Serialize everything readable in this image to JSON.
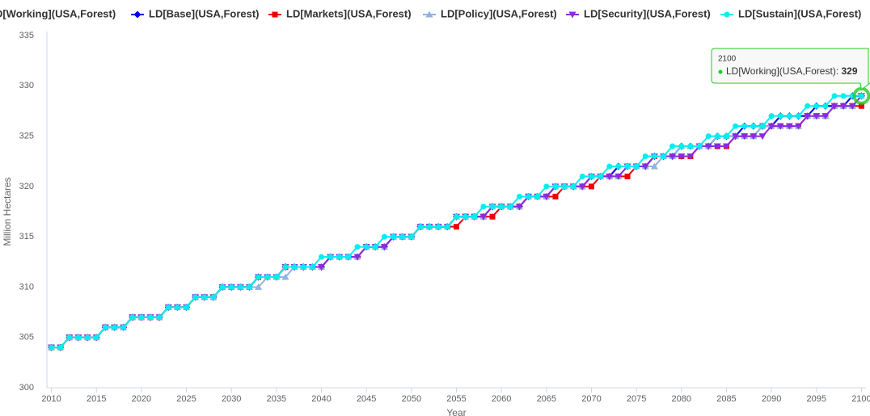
{
  "chart_data": {
    "type": "line",
    "y_label": "Million Hectares",
    "x_label": "Year",
    "x": [
      2010,
      2011,
      2012,
      2013,
      2014,
      2015,
      2016,
      2017,
      2018,
      2019,
      2020,
      2021,
      2022,
      2023,
      2024,
      2025,
      2026,
      2027,
      2028,
      2029,
      2030,
      2031,
      2032,
      2033,
      2034,
      2035,
      2036,
      2037,
      2038,
      2039,
      2040,
      2041,
      2042,
      2043,
      2044,
      2045,
      2046,
      2047,
      2048,
      2049,
      2050,
      2051,
      2052,
      2053,
      2054,
      2055,
      2056,
      2057,
      2058,
      2059,
      2060,
      2061,
      2062,
      2063,
      2064,
      2065,
      2066,
      2067,
      2068,
      2069,
      2070,
      2071,
      2072,
      2073,
      2074,
      2075,
      2076,
      2077,
      2078,
      2079,
      2080,
      2081,
      2082,
      2083,
      2084,
      2085,
      2086,
      2087,
      2088,
      2089,
      2090,
      2091,
      2092,
      2093,
      2094,
      2095,
      2096,
      2097,
      2098,
      2099,
      2100
    ],
    "xlim": [
      2009.5,
      2100.5
    ],
    "xticks": [
      2010,
      2015,
      2020,
      2025,
      2030,
      2035,
      2040,
      2045,
      2050,
      2055,
      2060,
      2065,
      2070,
      2075,
      2080,
      2085,
      2090,
      2095,
      2100
    ],
    "ylim": [
      300,
      335
    ],
    "yticks": [
      300,
      305,
      310,
      315,
      320,
      325,
      330,
      335
    ],
    "grid": false,
    "series": [
      {
        "name": "LD[Working](USA,Forest)",
        "color": "#22cc22",
        "marker": "circle",
        "values": [
          304,
          304,
          305,
          305,
          305,
          305,
          306,
          306,
          306,
          307,
          307,
          307,
          307,
          308,
          308,
          308,
          309,
          309,
          309,
          310,
          310,
          310,
          310,
          311,
          311,
          311,
          312,
          312,
          312,
          312,
          312,
          313,
          313,
          313,
          313,
          314,
          314,
          314,
          315,
          315,
          315,
          316,
          316,
          316,
          316,
          317,
          317,
          317,
          317,
          318,
          318,
          318,
          318,
          319,
          319,
          319,
          320,
          320,
          320,
          320,
          321,
          321,
          321,
          322,
          322,
          322,
          322,
          323,
          323,
          323,
          324,
          324,
          324,
          324,
          325,
          325,
          325,
          326,
          326,
          326,
          326,
          327,
          327,
          327,
          327,
          328,
          328,
          328,
          328,
          329,
          329
        ]
      },
      {
        "name": "LD[Base](USA,Forest)",
        "color": "#0000ee",
        "marker": "diamond",
        "values": [
          304,
          304,
          305,
          305,
          305,
          305,
          306,
          306,
          306,
          307,
          307,
          307,
          307,
          308,
          308,
          308,
          309,
          309,
          309,
          310,
          310,
          310,
          310,
          311,
          311,
          311,
          312,
          312,
          312,
          312,
          312,
          313,
          313,
          313,
          313,
          314,
          314,
          314,
          315,
          315,
          315,
          316,
          316,
          316,
          316,
          317,
          317,
          317,
          317,
          318,
          318,
          318,
          318,
          319,
          319,
          319,
          320,
          320,
          320,
          320,
          321,
          321,
          321,
          322,
          322,
          322,
          322,
          323,
          323,
          323,
          324,
          324,
          324,
          324,
          325,
          325,
          325,
          326,
          326,
          326,
          326,
          327,
          327,
          327,
          327,
          328,
          328,
          328,
          328,
          329,
          329
        ]
      },
      {
        "name": "LD[Markets](USA,Forest)",
        "color": "#ee0000",
        "marker": "square",
        "values": [
          304,
          304,
          305,
          305,
          305,
          305,
          306,
          306,
          306,
          307,
          307,
          307,
          307,
          308,
          308,
          308,
          309,
          309,
          309,
          310,
          310,
          310,
          310,
          311,
          311,
          311,
          312,
          312,
          312,
          312,
          312,
          313,
          313,
          313,
          313,
          314,
          314,
          314,
          315,
          315,
          315,
          316,
          316,
          316,
          316,
          316,
          317,
          317,
          317,
          317,
          318,
          318,
          318,
          319,
          319,
          319,
          319,
          320,
          320,
          320,
          320,
          321,
          321,
          321,
          321,
          322,
          322,
          323,
          323,
          323,
          323,
          323,
          324,
          324,
          324,
          324,
          325,
          325,
          325,
          326,
          326,
          326,
          326,
          326,
          327,
          327,
          327,
          328,
          328,
          328,
          328
        ]
      },
      {
        "name": "LD[Policy](USA,Forest)",
        "color": "#8fb3e3",
        "marker": "triangle",
        "values": [
          304,
          304,
          305,
          305,
          305,
          305,
          306,
          306,
          306,
          307,
          307,
          307,
          307,
          308,
          308,
          308,
          309,
          309,
          309,
          310,
          310,
          310,
          310,
          310,
          311,
          311,
          311,
          312,
          312,
          312,
          312,
          313,
          313,
          313,
          313,
          314,
          314,
          314,
          315,
          315,
          315,
          316,
          316,
          316,
          316,
          317,
          317,
          317,
          317,
          318,
          318,
          318,
          318,
          319,
          319,
          319,
          320,
          320,
          320,
          320,
          321,
          321,
          321,
          321,
          322,
          322,
          322,
          322,
          323,
          323,
          324,
          324,
          324,
          324,
          325,
          325,
          325,
          325,
          325,
          326,
          326,
          326,
          326,
          326,
          327,
          327,
          327,
          328,
          328,
          328,
          329
        ]
      },
      {
        "name": "LD[Security](USA,Forest)",
        "color": "#8a2be2",
        "marker": "triangle-down",
        "values": [
          304,
          304,
          305,
          305,
          305,
          305,
          306,
          306,
          306,
          307,
          307,
          307,
          307,
          308,
          308,
          308,
          309,
          309,
          309,
          310,
          310,
          310,
          310,
          311,
          311,
          311,
          312,
          312,
          312,
          312,
          312,
          313,
          313,
          313,
          313,
          314,
          314,
          314,
          315,
          315,
          315,
          316,
          316,
          316,
          316,
          317,
          317,
          317,
          317,
          318,
          318,
          318,
          318,
          319,
          319,
          319,
          320,
          320,
          320,
          320,
          321,
          321,
          321,
          321,
          322,
          322,
          322,
          323,
          323,
          323,
          323,
          323,
          324,
          324,
          324,
          324,
          325,
          325,
          325,
          325,
          326,
          326,
          326,
          326,
          327,
          327,
          327,
          328,
          328,
          328,
          329
        ]
      },
      {
        "name": "LD[Sustain](USA,Forest)",
        "color": "#00eeee",
        "marker": "circle",
        "values": [
          304,
          304,
          305,
          305,
          305,
          305,
          306,
          306,
          306,
          307,
          307,
          307,
          307,
          308,
          308,
          308,
          309,
          309,
          309,
          310,
          310,
          310,
          310,
          311,
          311,
          311,
          312,
          312,
          312,
          312,
          313,
          313,
          313,
          313,
          314,
          314,
          314,
          315,
          315,
          315,
          315,
          316,
          316,
          316,
          316,
          317,
          317,
          317,
          318,
          318,
          318,
          318,
          319,
          319,
          319,
          320,
          320,
          320,
          320,
          321,
          321,
          321,
          322,
          322,
          322,
          322,
          323,
          323,
          323,
          324,
          324,
          324,
          324,
          325,
          325,
          325,
          326,
          326,
          326,
          326,
          327,
          327,
          327,
          327,
          328,
          328,
          328,
          329,
          329,
          329,
          329
        ]
      }
    ],
    "tooltip": {
      "separator": ": "
    }
  }
}
